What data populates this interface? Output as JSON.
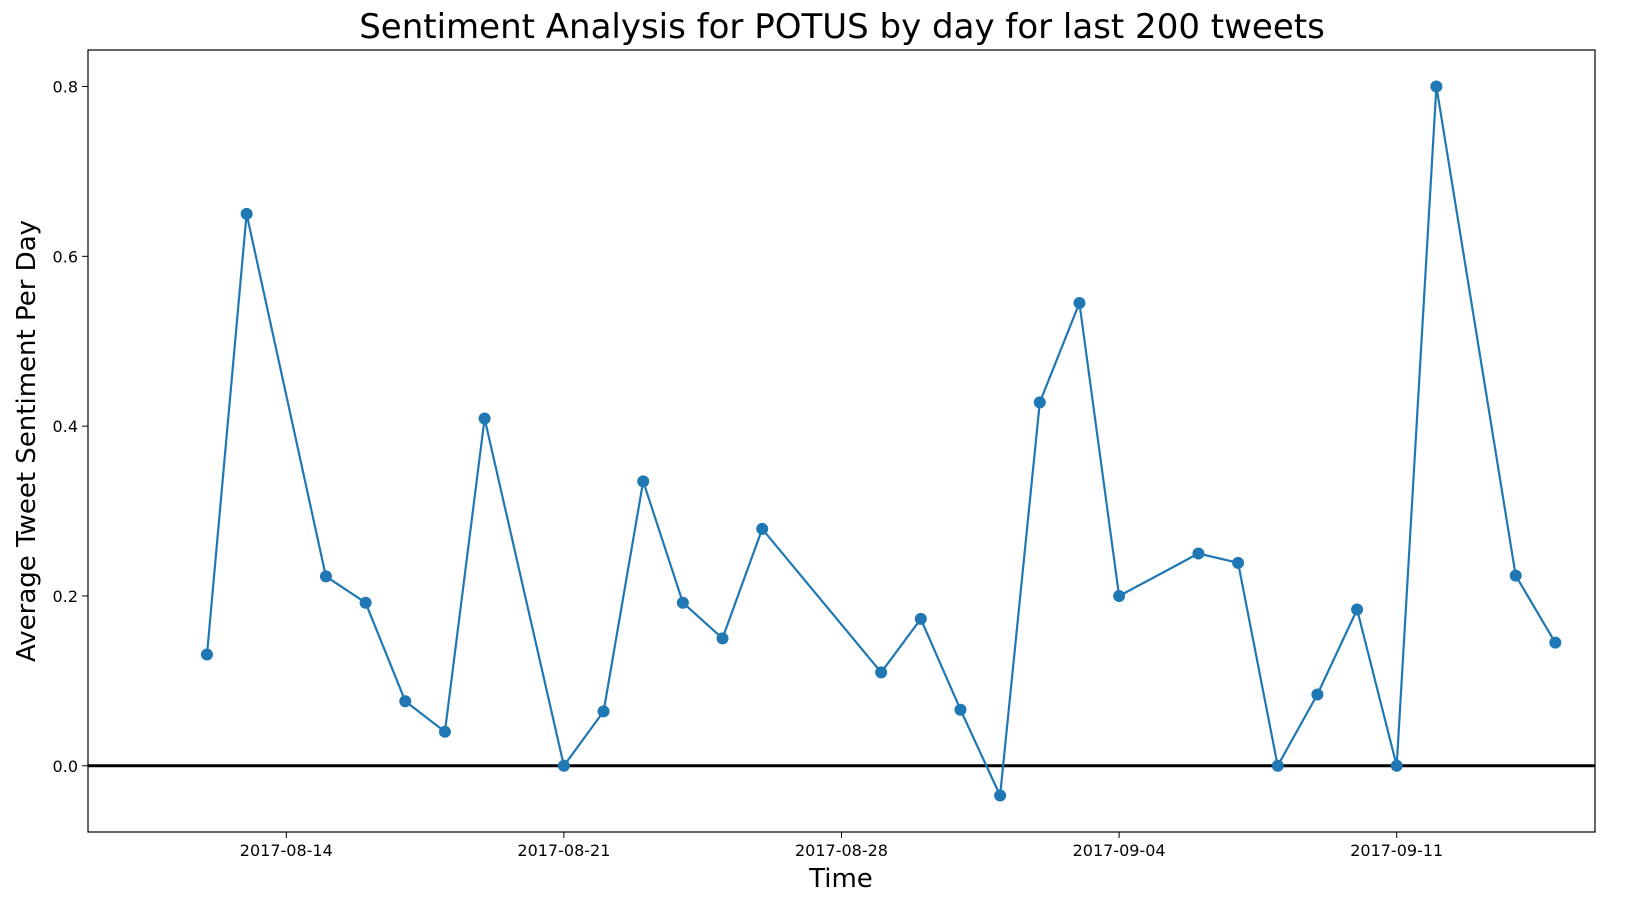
{
  "chart_data": {
    "type": "line",
    "title": "Sentiment Analysis for POTUS by day for last 200 tweets",
    "xlabel": "Time",
    "ylabel": "Average Tweet Sentiment Per Day",
    "x_is_date": true,
    "xlim": [
      "2017-08-09",
      "2017-09-16"
    ],
    "ylim": [
      -0.078,
      0.843
    ],
    "y_ticks": [
      0.0,
      0.2,
      0.4,
      0.6,
      0.8
    ],
    "y_tick_labels": [
      "0.0",
      "0.2",
      "0.4",
      "0.6",
      "0.8"
    ],
    "x_ticks": [
      "2017-08-14",
      "2017-08-21",
      "2017-08-28",
      "2017-09-04",
      "2017-09-11"
    ],
    "x_tick_labels": [
      "2017-08-14",
      "2017-08-21",
      "2017-08-28",
      "2017-09-04",
      "2017-09-11"
    ],
    "grid": false,
    "legend": false,
    "series": [
      {
        "color": "#1f77b4",
        "marker": "circle",
        "points": [
          {
            "x": "2017-08-12",
            "y": 0.131
          },
          {
            "x": "2017-08-13",
            "y": 0.65
          },
          {
            "x": "2017-08-15",
            "y": 0.223
          },
          {
            "x": "2017-08-16",
            "y": 0.192
          },
          {
            "x": "2017-08-17",
            "y": 0.076
          },
          {
            "x": "2017-08-18",
            "y": 0.04
          },
          {
            "x": "2017-08-19",
            "y": 0.409
          },
          {
            "x": "2017-08-21",
            "y": 0.0
          },
          {
            "x": "2017-08-22",
            "y": 0.064
          },
          {
            "x": "2017-08-23",
            "y": 0.335
          },
          {
            "x": "2017-08-24",
            "y": 0.192
          },
          {
            "x": "2017-08-25",
            "y": 0.15
          },
          {
            "x": "2017-08-26",
            "y": 0.279
          },
          {
            "x": "2017-08-29",
            "y": 0.11
          },
          {
            "x": "2017-08-30",
            "y": 0.173
          },
          {
            "x": "2017-08-31",
            "y": 0.066
          },
          {
            "x": "2017-09-01",
            "y": -0.035
          },
          {
            "x": "2017-09-02",
            "y": 0.428
          },
          {
            "x": "2017-09-03",
            "y": 0.545
          },
          {
            "x": "2017-09-04",
            "y": 0.2
          },
          {
            "x": "2017-09-06",
            "y": 0.25
          },
          {
            "x": "2017-09-07",
            "y": 0.239
          },
          {
            "x": "2017-09-08",
            "y": 0.0
          },
          {
            "x": "2017-09-09",
            "y": 0.084
          },
          {
            "x": "2017-09-10",
            "y": 0.184
          },
          {
            "x": "2017-09-11",
            "y": 0.0
          },
          {
            "x": "2017-09-12",
            "y": 0.8
          },
          {
            "x": "2017-09-14",
            "y": 0.224
          },
          {
            "x": "2017-09-15",
            "y": 0.145
          }
        ]
      }
    ],
    "reference_line": {
      "y": 0.0,
      "color": "#000000"
    }
  }
}
